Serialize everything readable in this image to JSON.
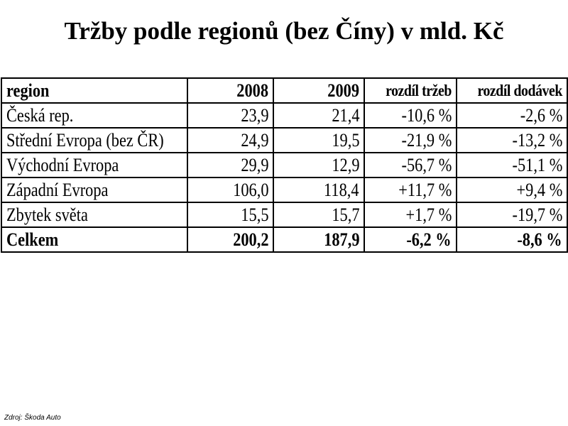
{
  "chart_data": {
    "type": "table",
    "title": "Tržby podle regionů (bez Číny) v mld. Kč",
    "columns": [
      "region",
      "2008",
      "2009",
      "rozdíl tržeb",
      "rozdíl dodávek"
    ],
    "rows": [
      [
        "Česká rep.",
        "23,9",
        "21,4",
        "-10,6 %",
        "-2,6 %"
      ],
      [
        "Střední Evropa (bez ČR)",
        "24,9",
        "19,5",
        "-21,9 %",
        "-13,2 %"
      ],
      [
        "Východní Evropa",
        "29,9",
        "12,9",
        "-56,7 %",
        "-51,1 %"
      ],
      [
        "Západní Evropa",
        "106,0",
        "118,4",
        "+11,7 %",
        "+9,4 %"
      ],
      [
        "Zbytek světa",
        "15,5",
        "15,7",
        "+1,7 %",
        "-19,7 %"
      ]
    ],
    "total": [
      "Celkem",
      "200,2",
      "187,9",
      "-6,2 %",
      "-8,6 %"
    ],
    "source": "Zdroj: Škoda Auto"
  }
}
